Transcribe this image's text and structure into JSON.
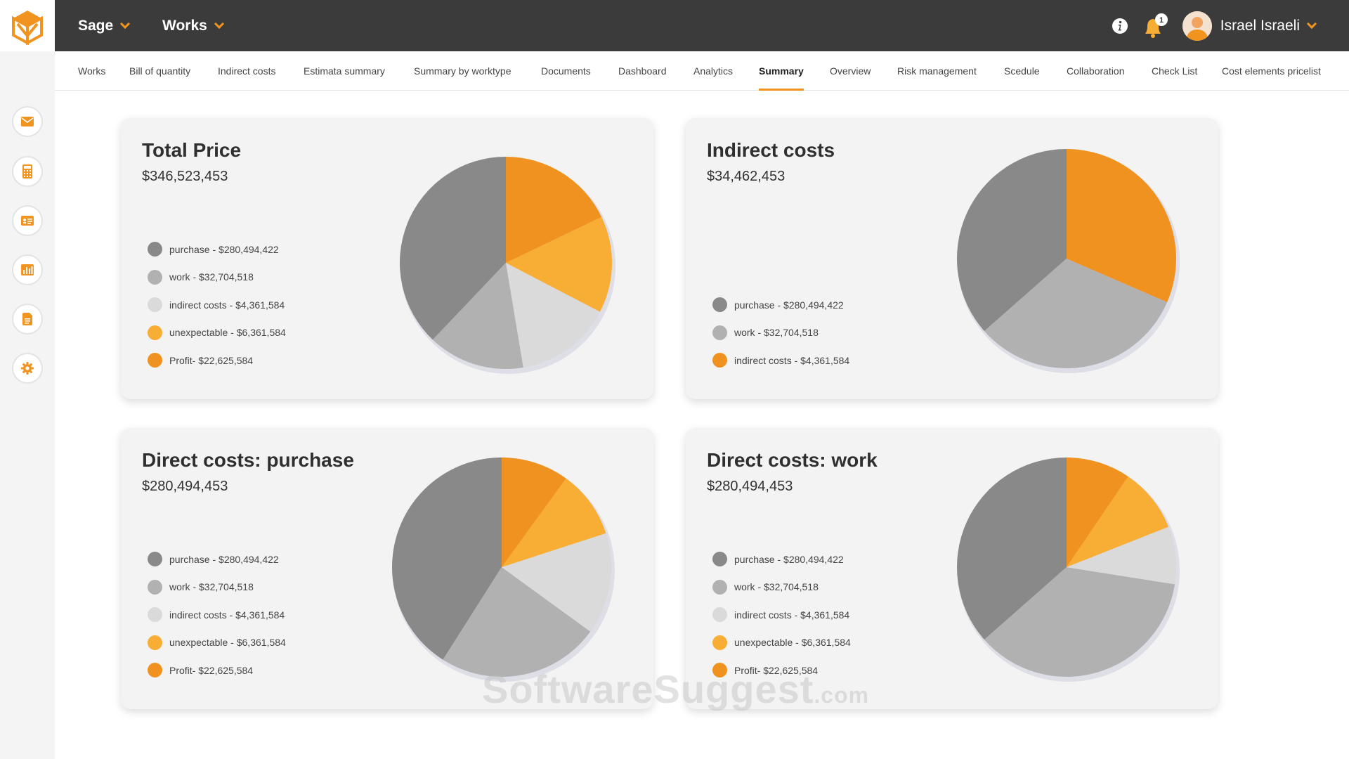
{
  "colors": {
    "dark": "#898989",
    "mid": "#b1b1b1",
    "light": "#dadada",
    "yellow": "#f8ad35",
    "orange": "#ef9220"
  },
  "sidebar": {
    "logo": "cube-logo",
    "items": [
      {
        "name": "mail-icon"
      },
      {
        "name": "calculator-icon"
      },
      {
        "name": "contact-card-icon"
      },
      {
        "name": "bar-chart-icon"
      },
      {
        "name": "document-icon"
      },
      {
        "name": "settings-icon"
      }
    ]
  },
  "topbar": {
    "company": "Sage",
    "module": "Works",
    "notification_count": "1",
    "user_name": "Israel Israeli"
  },
  "tabs": [
    "Works",
    "Bill of quantity",
    "Indirect costs",
    "Estimata summary",
    "Summary by worktype",
    "Documents",
    "Dashboard",
    "Analytics",
    "Summary",
    "Overview",
    "Risk management",
    "Scedule",
    "Collaboration",
    "Check List",
    "Cost elements pricelist"
  ],
  "active_tab": "Summary",
  "cards": [
    {
      "title": "Total Price",
      "amount": "$346,523,453",
      "legend": [
        {
          "label": "purchase - $280,494,422",
          "color": "#898989"
        },
        {
          "label": "work - $32,704,518",
          "color": "#b1b1b1"
        },
        {
          "label": "indirect costs - $4,361,584",
          "color": "#dadada"
        },
        {
          "label": "unexpectable - $6,361,584",
          "color": "#f8ad35"
        },
        {
          "label": "Profit- $22,625,584",
          "color": "#ef9220"
        }
      ]
    },
    {
      "title": "Indirect costs",
      "amount": "$34,462,453",
      "legend": [
        {
          "label": "purchase - $280,494,422",
          "color": "#898989"
        },
        {
          "label": "work - $32,704,518",
          "color": "#b1b1b1"
        },
        {
          "label": "indirect costs - $4,361,584",
          "color": "#ef9220"
        }
      ]
    },
    {
      "title": "Direct costs: purchase",
      "amount": "$280,494,453",
      "legend": [
        {
          "label": "purchase - $280,494,422",
          "color": "#898989"
        },
        {
          "label": "work - $32,704,518",
          "color": "#b1b1b1"
        },
        {
          "label": "indirect costs - $4,361,584",
          "color": "#dadada"
        },
        {
          "label": "unexpectable - $6,361,584",
          "color": "#f8ad35"
        },
        {
          "label": "Profit- $22,625,584",
          "color": "#ef9220"
        }
      ]
    },
    {
      "title": "Direct costs: work",
      "amount": "$280,494,453",
      "legend": [
        {
          "label": "purchase - $280,494,422",
          "color": "#898989"
        },
        {
          "label": "work - $32,704,518",
          "color": "#b1b1b1"
        },
        {
          "label": "indirect costs - $4,361,584",
          "color": "#dadada"
        },
        {
          "label": "unexpectable - $6,361,584",
          "color": "#f8ad35"
        },
        {
          "label": "Profit- $22,625,584",
          "color": "#ef9220"
        }
      ]
    }
  ],
  "chart_data": [
    {
      "type": "pie",
      "title": "Total Price",
      "labels": [
        "purchase",
        "work",
        "indirect costs",
        "unexpectable",
        "Profit"
      ],
      "values": [
        36,
        14,
        14,
        14,
        17
      ],
      "colors": [
        "#898989",
        "#b1b1b1",
        "#dadada",
        "#f8ad35",
        "#ef9220"
      ]
    },
    {
      "type": "pie",
      "title": "Indirect costs",
      "labels": [
        "purchase",
        "work",
        "indirect costs"
      ],
      "values": [
        36.5,
        32,
        31.5
      ],
      "colors": [
        "#898989",
        "#b1b1b1",
        "#ef9220"
      ]
    },
    {
      "type": "pie",
      "title": "Direct costs: purchase",
      "labels": [
        "purchase",
        "work",
        "indirect costs",
        "unexpectable",
        "Profit"
      ],
      "values": [
        41,
        24,
        15,
        10,
        10
      ],
      "colors": [
        "#898989",
        "#b1b1b1",
        "#dadada",
        "#f8ad35",
        "#ef9220"
      ]
    },
    {
      "type": "pie",
      "title": "Direct costs: work",
      "labels": [
        "purchase",
        "work",
        "indirect costs",
        "unexpectable",
        "Profit"
      ],
      "values": [
        36.5,
        36,
        8.5,
        9.5,
        9.5
      ],
      "colors": [
        "#898989",
        "#b1b1b1",
        "#dadada",
        "#f8ad35",
        "#ef9220"
      ]
    }
  ],
  "watermark": {
    "main": "SoftwareSuggest",
    "suffix": ".com"
  }
}
